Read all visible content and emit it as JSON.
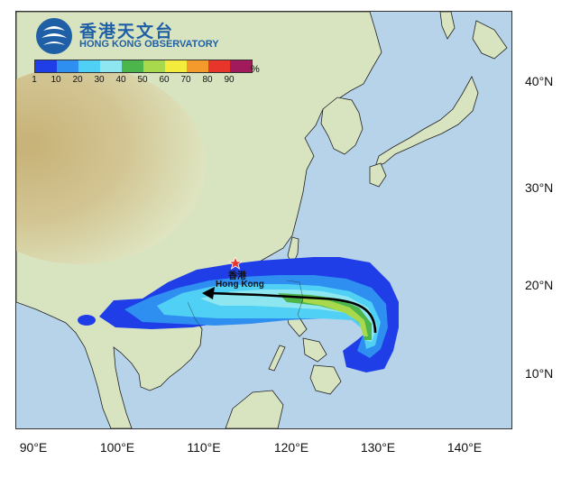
{
  "header": {
    "org_name_zh": "香港天文台",
    "org_name_en": "HONG KONG OBSERVATORY"
  },
  "legend": {
    "unit": "%",
    "labels": [
      "1",
      "10",
      "20",
      "30",
      "40",
      "50",
      "60",
      "70",
      "80",
      "90"
    ],
    "colors": [
      "#1f3ee8",
      "#2e8ff0",
      "#4fd0f4",
      "#8ee6f0",
      "#4cb54c",
      "#a8d84c",
      "#f4ec3c",
      "#f49a2c",
      "#e8352c",
      "#a01a5c"
    ]
  },
  "map": {
    "latitude_labels": [
      "40°N",
      "30°N",
      "20°N",
      "10°N"
    ],
    "longitude_labels": [
      "90°E",
      "100°E",
      "110°E",
      "120°E",
      "130°E",
      "140°E"
    ],
    "place_zh": "香港",
    "place_en": "Hong Kong",
    "colors": {
      "sea": "#b7d3ea",
      "land": "#d8e4bf",
      "highland": "#c9b27c",
      "track": "#000000",
      "marker": "#e8352c"
    }
  }
}
